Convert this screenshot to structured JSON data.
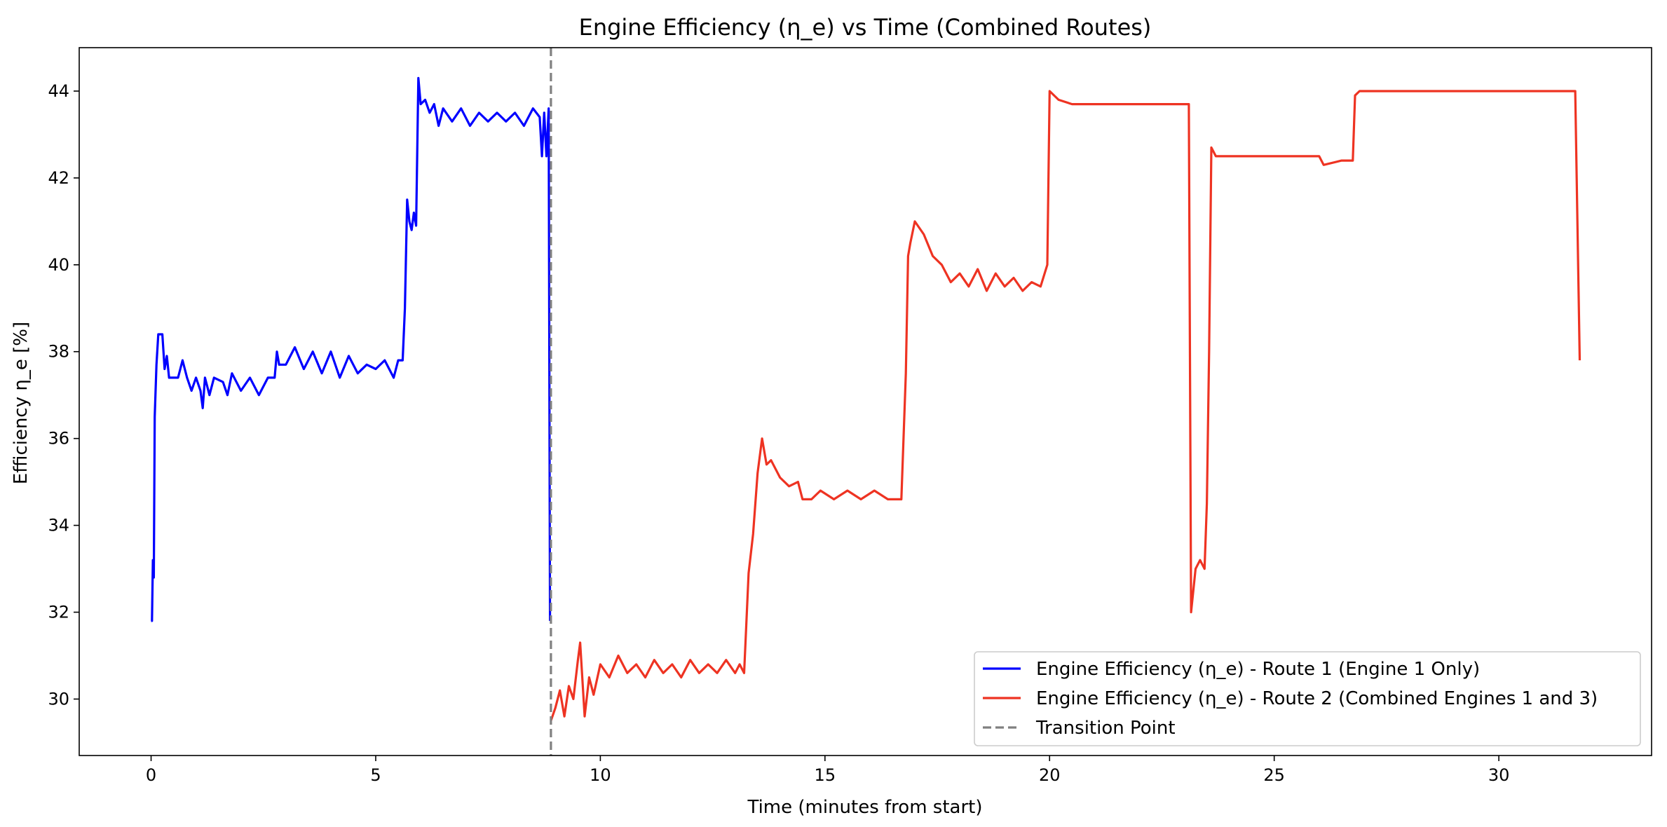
{
  "chart_data": {
    "type": "line",
    "title": "Engine Efficiency (η_e) vs Time (Combined Routes)",
    "xlabel": "Time (minutes from start)",
    "ylabel": "Efficiency η_e [%]",
    "xlim": [
      -1.6,
      33.4
    ],
    "ylim": [
      28.7,
      45.0
    ],
    "xticks": [
      0,
      5,
      10,
      15,
      20,
      25,
      30
    ],
    "yticks": [
      30,
      32,
      34,
      36,
      38,
      40,
      42,
      44
    ],
    "grid": false,
    "legend_position": "bottom-right",
    "series": [
      {
        "name": "Engine Efficiency (η_e) - Route 1 (Engine 1 Only)",
        "color": "#0000ff",
        "points": [
          [
            0.0,
            31.8
          ],
          [
            0.02,
            31.8
          ],
          [
            0.04,
            33.2
          ],
          [
            0.06,
            32.8
          ],
          [
            0.08,
            36.5
          ],
          [
            0.12,
            37.7
          ],
          [
            0.16,
            38.4
          ],
          [
            0.25,
            38.4
          ],
          [
            0.3,
            37.6
          ],
          [
            0.35,
            37.9
          ],
          [
            0.4,
            37.4
          ],
          [
            0.6,
            37.4
          ],
          [
            0.7,
            37.8
          ],
          [
            0.8,
            37.4
          ],
          [
            0.9,
            37.1
          ],
          [
            1.0,
            37.4
          ],
          [
            1.1,
            37.1
          ],
          [
            1.15,
            36.7
          ],
          [
            1.2,
            37.4
          ],
          [
            1.3,
            37.0
          ],
          [
            1.4,
            37.4
          ],
          [
            1.6,
            37.3
          ],
          [
            1.7,
            37.0
          ],
          [
            1.8,
            37.5
          ],
          [
            2.0,
            37.1
          ],
          [
            2.2,
            37.4
          ],
          [
            2.4,
            37.0
          ],
          [
            2.6,
            37.4
          ],
          [
            2.75,
            37.4
          ],
          [
            2.8,
            38.0
          ],
          [
            2.85,
            37.7
          ],
          [
            3.0,
            37.7
          ],
          [
            3.2,
            38.1
          ],
          [
            3.4,
            37.6
          ],
          [
            3.6,
            38.0
          ],
          [
            3.8,
            37.5
          ],
          [
            4.0,
            38.0
          ],
          [
            4.2,
            37.4
          ],
          [
            4.4,
            37.9
          ],
          [
            4.6,
            37.5
          ],
          [
            4.8,
            37.7
          ],
          [
            5.0,
            37.6
          ],
          [
            5.2,
            37.8
          ],
          [
            5.4,
            37.4
          ],
          [
            5.5,
            37.8
          ],
          [
            5.6,
            37.8
          ],
          [
            5.65,
            39.0
          ],
          [
            5.7,
            41.5
          ],
          [
            5.75,
            41.0
          ],
          [
            5.8,
            40.8
          ],
          [
            5.85,
            41.2
          ],
          [
            5.9,
            40.9
          ],
          [
            5.95,
            44.3
          ],
          [
            6.0,
            43.7
          ],
          [
            6.1,
            43.8
          ],
          [
            6.2,
            43.5
          ],
          [
            6.3,
            43.7
          ],
          [
            6.4,
            43.2
          ],
          [
            6.5,
            43.6
          ],
          [
            6.7,
            43.3
          ],
          [
            6.9,
            43.6
          ],
          [
            7.1,
            43.2
          ],
          [
            7.3,
            43.5
          ],
          [
            7.5,
            43.3
          ],
          [
            7.7,
            43.5
          ],
          [
            7.9,
            43.3
          ],
          [
            8.1,
            43.5
          ],
          [
            8.3,
            43.2
          ],
          [
            8.5,
            43.6
          ],
          [
            8.65,
            43.4
          ],
          [
            8.7,
            42.5
          ],
          [
            8.75,
            43.5
          ],
          [
            8.8,
            42.5
          ],
          [
            8.85,
            43.6
          ],
          [
            8.88,
            31.8
          ]
        ]
      },
      {
        "name": "Engine Efficiency (η_e) - Route 2 (Combined Engines 1 and 3)",
        "color": "#ee3322",
        "points": [
          [
            8.9,
            29.5
          ],
          [
            9.0,
            29.8
          ],
          [
            9.1,
            30.2
          ],
          [
            9.2,
            29.6
          ],
          [
            9.3,
            30.3
          ],
          [
            9.4,
            30.0
          ],
          [
            9.5,
            30.9
          ],
          [
            9.55,
            31.3
          ],
          [
            9.65,
            29.6
          ],
          [
            9.75,
            30.5
          ],
          [
            9.85,
            30.1
          ],
          [
            10.0,
            30.8
          ],
          [
            10.2,
            30.5
          ],
          [
            10.4,
            31.0
          ],
          [
            10.6,
            30.6
          ],
          [
            10.8,
            30.8
          ],
          [
            11.0,
            30.5
          ],
          [
            11.2,
            30.9
          ],
          [
            11.4,
            30.6
          ],
          [
            11.6,
            30.8
          ],
          [
            11.8,
            30.5
          ],
          [
            12.0,
            30.9
          ],
          [
            12.2,
            30.6
          ],
          [
            12.4,
            30.8
          ],
          [
            12.6,
            30.6
          ],
          [
            12.8,
            30.9
          ],
          [
            13.0,
            30.6
          ],
          [
            13.1,
            30.8
          ],
          [
            13.2,
            30.6
          ],
          [
            13.3,
            32.9
          ],
          [
            13.4,
            33.8
          ],
          [
            13.5,
            35.2
          ],
          [
            13.6,
            36.0
          ],
          [
            13.7,
            35.4
          ],
          [
            13.8,
            35.5
          ],
          [
            14.0,
            35.1
          ],
          [
            14.2,
            34.9
          ],
          [
            14.4,
            35.0
          ],
          [
            14.5,
            34.6
          ],
          [
            14.7,
            34.6
          ],
          [
            14.9,
            34.8
          ],
          [
            15.2,
            34.6
          ],
          [
            15.5,
            34.8
          ],
          [
            15.8,
            34.6
          ],
          [
            16.1,
            34.8
          ],
          [
            16.4,
            34.6
          ],
          [
            16.7,
            34.6
          ],
          [
            16.8,
            37.5
          ],
          [
            16.85,
            40.2
          ],
          [
            16.9,
            40.5
          ],
          [
            17.0,
            41.0
          ],
          [
            17.2,
            40.7
          ],
          [
            17.4,
            40.2
          ],
          [
            17.6,
            40.0
          ],
          [
            17.8,
            39.6
          ],
          [
            18.0,
            39.8
          ],
          [
            18.2,
            39.5
          ],
          [
            18.4,
            39.9
          ],
          [
            18.6,
            39.4
          ],
          [
            18.8,
            39.8
          ],
          [
            19.0,
            39.5
          ],
          [
            19.2,
            39.7
          ],
          [
            19.4,
            39.4
          ],
          [
            19.6,
            39.6
          ],
          [
            19.8,
            39.5
          ],
          [
            19.95,
            40.0
          ],
          [
            20.0,
            44.0
          ],
          [
            20.2,
            43.8
          ],
          [
            20.5,
            43.7
          ],
          [
            21.0,
            43.7
          ],
          [
            21.5,
            43.7
          ],
          [
            22.0,
            43.7
          ],
          [
            22.5,
            43.7
          ],
          [
            23.0,
            43.7
          ],
          [
            23.1,
            43.7
          ],
          [
            23.15,
            32.0
          ],
          [
            23.25,
            33.0
          ],
          [
            23.35,
            33.2
          ],
          [
            23.45,
            33.0
          ],
          [
            23.5,
            34.5
          ],
          [
            23.55,
            38.0
          ],
          [
            23.6,
            42.7
          ],
          [
            23.7,
            42.5
          ],
          [
            24.0,
            42.5
          ],
          [
            24.5,
            42.5
          ],
          [
            25.0,
            42.5
          ],
          [
            25.5,
            42.5
          ],
          [
            26.0,
            42.5
          ],
          [
            26.1,
            42.3
          ],
          [
            26.5,
            42.4
          ],
          [
            26.75,
            42.4
          ],
          [
            26.8,
            43.9
          ],
          [
            26.9,
            44.0
          ],
          [
            27.5,
            44.0
          ],
          [
            28.0,
            44.0
          ],
          [
            29.0,
            44.0
          ],
          [
            30.0,
            44.0
          ],
          [
            31.0,
            44.0
          ],
          [
            31.7,
            44.0
          ],
          [
            31.8,
            37.8
          ]
        ]
      },
      {
        "name": "Transition Point",
        "color": "#808080",
        "dashed": true,
        "vline_x": 8.9
      }
    ]
  }
}
